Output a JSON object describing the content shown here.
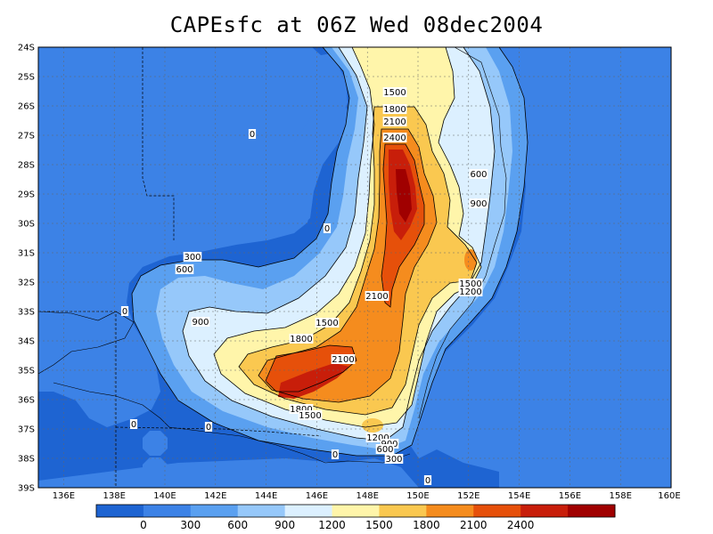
{
  "title": "CAPEsfc at 06Z Wed 08dec2004",
  "lat_labels": [
    "24S",
    "25S",
    "26S",
    "27S",
    "28S",
    "29S",
    "30S",
    "31S",
    "32S",
    "33S",
    "34S",
    "35S",
    "36S",
    "37S",
    "38S",
    "39S"
  ],
  "lon_labels": [
    "136E",
    "138E",
    "140E",
    "142E",
    "144E",
    "146E",
    "148E",
    "150E",
    "152E",
    "154E",
    "156E",
    "158E",
    "160E"
  ],
  "contour_labels": [
    "1500",
    "1800",
    "2100",
    "2400",
    "0",
    "600",
    "900",
    "0",
    "300",
    "600",
    "1500",
    "1200",
    "2100",
    "0",
    "900",
    "1500",
    "1800",
    "2100",
    "1800",
    "1500",
    "1200",
    "900",
    "600",
    "300",
    "0",
    "0",
    "0",
    "0"
  ],
  "colorbar": {
    "labels": [
      "0",
      "300",
      "600",
      "900",
      "1200",
      "1500",
      "1800",
      "2100",
      "2400"
    ],
    "colors": [
      "#1e64d2",
      "#3c82e6",
      "#5aa0f0",
      "#96c8fa",
      "#dcf0ff",
      "#fff5aa",
      "#fac850",
      "#f58c1e",
      "#e6500a",
      "#c81e0a",
      "#a00000"
    ]
  },
  "colors": {
    "level0": "#1e64d2",
    "level1": "#3c82e6",
    "level2": "#5aa0f0",
    "level3": "#96c8fa",
    "level4": "#dcf0ff",
    "level5": "#fff5aa",
    "level6": "#fac850",
    "level7": "#f58c1e",
    "level8": "#e6500a",
    "level9": "#c81e0a",
    "level10": "#a00000"
  }
}
